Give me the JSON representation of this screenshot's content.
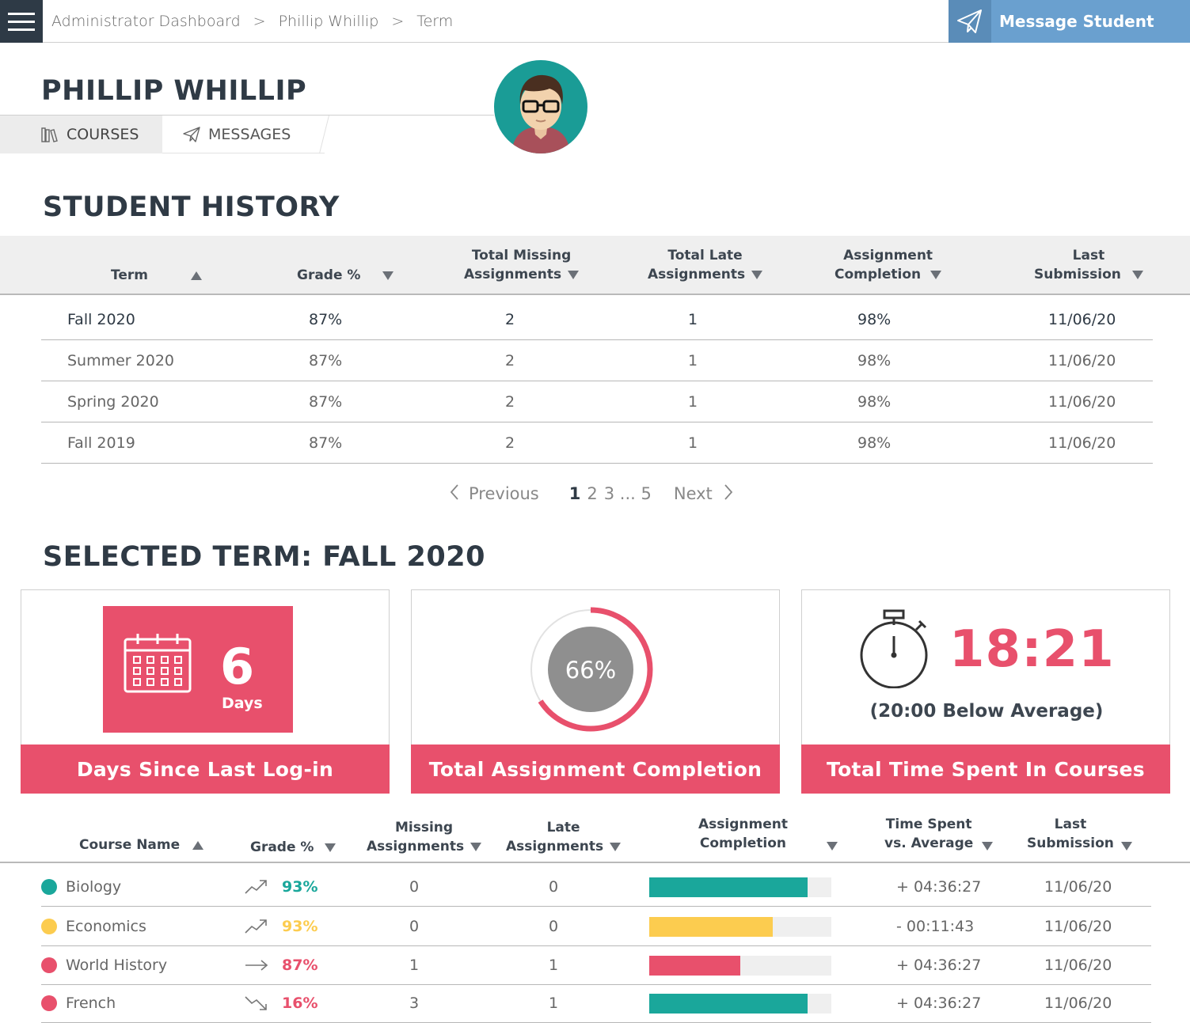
{
  "breadcrumb": {
    "items": [
      "Administrator Dashboard",
      "Phillip Whillip",
      "Term"
    ],
    "separator": ">"
  },
  "message_button": {
    "label": "Message Student"
  },
  "student": {
    "name": "PHILLIP WHILLIP"
  },
  "tabs": {
    "courses": "COURSES",
    "messages": "MESSAGES"
  },
  "history": {
    "title": "STUDENT HISTORY",
    "columns": {
      "term": "Term",
      "grade": "Grade %",
      "missing_1": "Total Missing",
      "missing_2": "Assignments",
      "late_1": "Total Late",
      "late_2": "Assignments",
      "completion_1": "Assignment",
      "completion_2": "Completion",
      "last_1": "Last",
      "last_2": "Submission"
    },
    "rows": [
      {
        "term": "Fall 2020",
        "grade": "87%",
        "missing": "2",
        "late": "1",
        "completion": "98%",
        "last": "11/06/20"
      },
      {
        "term": "Summer 2020",
        "grade": "87%",
        "missing": "2",
        "late": "1",
        "completion": "98%",
        "last": "11/06/20"
      },
      {
        "term": "Spring 2020",
        "grade": "87%",
        "missing": "2",
        "late": "1",
        "completion": "98%",
        "last": "11/06/20"
      },
      {
        "term": "Fall 2019",
        "grade": "87%",
        "missing": "2",
        "late": "1",
        "completion": "98%",
        "last": "11/06/20"
      }
    ]
  },
  "pager": {
    "previous": "Previous",
    "p1": "1",
    "p2": "2",
    "p3": "3 ... 5",
    "next": "Next"
  },
  "selected_term": {
    "title": "SELECTED TERM: FALL 2020",
    "days_card": {
      "value": "6",
      "unit": "Days",
      "footer": "Days Since Last Log-in"
    },
    "completion_card": {
      "value": "66%",
      "percent": 66,
      "footer": "Total Assignment Completion"
    },
    "time_card": {
      "value": "18:21",
      "note": "(20:00 Below Average)",
      "footer": "Total Time Spent In Courses"
    }
  },
  "courses": {
    "columns": {
      "name": "Course Name",
      "grade": "Grade %",
      "missing_1": "Missing",
      "missing_2": "Assignments",
      "late_1": "Late",
      "late_2": "Assignments",
      "completion_1": "Assignment",
      "completion_2": "Completion",
      "time_1": "Time Spent",
      "time_2": "vs. Average",
      "last_1": "Last",
      "last_2": "Submission"
    },
    "rows": [
      {
        "name": "Biology",
        "trend": "trend-up-icon",
        "grade": "93%",
        "missing": "0",
        "late": "0",
        "completion": 0.87,
        "time": "+ 04:36:27",
        "last": "11/06/20",
        "color": "#1aa79b"
      },
      {
        "name": "Economics",
        "trend": "trend-up-icon",
        "grade": "93%",
        "missing": "0",
        "late": "0",
        "completion": 0.68,
        "time": "- 00:11:43",
        "last": "11/06/20",
        "color": "#fccc4f"
      },
      {
        "name": "World History",
        "trend": "trend-flat-icon",
        "grade": "87%",
        "missing": "1",
        "late": "1",
        "completion": 0.5,
        "time": "+ 04:36:27",
        "last": "11/06/20",
        "color": "#e8506c"
      },
      {
        "name": "French",
        "trend": "trend-down-icon",
        "grade": "16%",
        "missing": "3",
        "late": "1",
        "completion": 0.87,
        "time": "+ 04:36:27",
        "last": "11/06/20",
        "color": "#e8506c",
        "bar_color": "#1aa79b"
      }
    ]
  },
  "colors": {
    "accent": "#e8506c",
    "teal": "#1aa79b",
    "yellow": "#fccc4f",
    "blue": "#6aa0cf",
    "navy": "#2e3a46"
  }
}
